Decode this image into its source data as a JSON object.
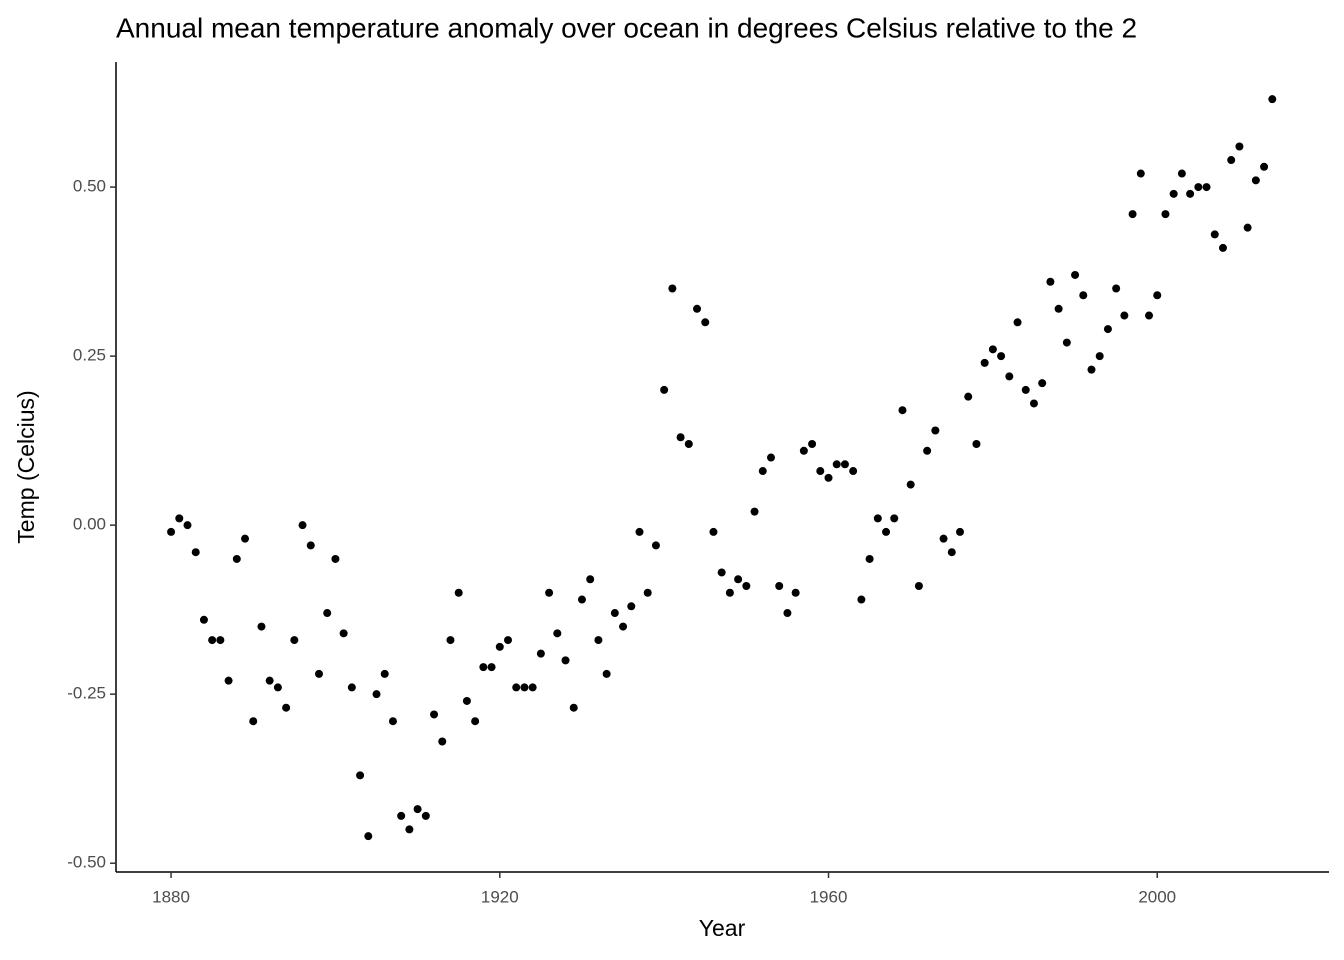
{
  "chart_data": {
    "type": "scatter",
    "title": "Annual mean temperature anomaly over ocean in degrees Celsius relative to the 2",
    "x_label": "Year",
    "y_label": "Temp (Celcius)",
    "color": "#000000",
    "x": [
      1880,
      1881,
      1882,
      1883,
      1884,
      1885,
      1886,
      1887,
      1888,
      1889,
      1890,
      1891,
      1892,
      1893,
      1894,
      1895,
      1896,
      1897,
      1898,
      1899,
      1900,
      1901,
      1902,
      1903,
      1904,
      1905,
      1906,
      1907,
      1908,
      1909,
      1910,
      1911,
      1912,
      1913,
      1914,
      1915,
      1916,
      1917,
      1918,
      1919,
      1920,
      1921,
      1922,
      1923,
      1924,
      1925,
      1926,
      1927,
      1928,
      1929,
      1930,
      1931,
      1932,
      1933,
      1934,
      1935,
      1936,
      1937,
      1938,
      1939,
      1940,
      1941,
      1942,
      1943,
      1944,
      1945,
      1946,
      1947,
      1948,
      1949,
      1950,
      1951,
      1952,
      1953,
      1954,
      1955,
      1956,
      1957,
      1958,
      1959,
      1960,
      1961,
      1962,
      1963,
      1964,
      1965,
      1966,
      1967,
      1968,
      1969,
      1970,
      1971,
      1972,
      1973,
      1974,
      1975,
      1976,
      1977,
      1978,
      1979,
      1980,
      1981,
      1982,
      1983,
      1984,
      1985,
      1986,
      1987,
      1988,
      1989,
      1990,
      1991,
      1992,
      1993,
      1994,
      1995,
      1996,
      1997,
      1998,
      1999,
      2000,
      2001,
      2002,
      2003,
      2004,
      2005,
      2006,
      2007,
      2008,
      2009,
      2010,
      2011,
      2012,
      2013,
      2014
    ],
    "values": [
      -0.01,
      0.01,
      0.0,
      -0.04,
      -0.14,
      -0.17,
      -0.17,
      -0.23,
      -0.05,
      -0.02,
      -0.29,
      -0.15,
      -0.23,
      -0.24,
      -0.27,
      -0.17,
      0.0,
      -0.03,
      -0.22,
      -0.13,
      -0.05,
      -0.16,
      -0.24,
      -0.37,
      -0.46,
      -0.25,
      -0.22,
      -0.29,
      -0.43,
      -0.45,
      -0.42,
      -0.43,
      -0.28,
      -0.32,
      -0.17,
      -0.1,
      -0.26,
      -0.29,
      -0.21,
      -0.21,
      -0.18,
      -0.17,
      -0.24,
      -0.24,
      -0.24,
      -0.19,
      -0.1,
      -0.16,
      -0.2,
      -0.27,
      -0.11,
      -0.08,
      -0.17,
      -0.22,
      -0.13,
      -0.15,
      -0.12,
      -0.01,
      -0.1,
      -0.03,
      0.2,
      0.35,
      0.13,
      0.12,
      0.32,
      0.3,
      -0.01,
      -0.07,
      -0.1,
      -0.08,
      -0.09,
      0.02,
      0.08,
      0.1,
      -0.09,
      -0.13,
      -0.1,
      0.11,
      0.12,
      0.08,
      0.07,
      0.09,
      0.09,
      0.08,
      -0.11,
      -0.05,
      0.01,
      -0.01,
      0.01,
      0.17,
      0.06,
      -0.09,
      0.11,
      0.14,
      -0.02,
      -0.04,
      -0.01,
      0.19,
      0.12,
      0.24,
      0.26,
      0.25,
      0.22,
      0.3,
      0.2,
      0.18,
      0.21,
      0.36,
      0.32,
      0.27,
      0.37,
      0.34,
      0.23,
      0.25,
      0.29,
      0.35,
      0.31,
      0.46,
      0.52,
      0.31,
      0.34,
      0.46,
      0.49,
      0.52,
      0.49,
      0.5,
      0.5,
      0.43,
      0.41,
      0.54,
      0.56,
      0.44,
      0.51,
      0.53,
      0.63
    ],
    "xlim": [
      1873.3,
      2020.9
    ],
    "ylim": [
      -0.513,
      0.685
    ],
    "xticks": [
      1880,
      1920,
      1960,
      2000
    ],
    "yticks": [
      {
        "value": -0.5,
        "label": "-0.50"
      },
      {
        "value": -0.25,
        "label": "-0.25"
      },
      {
        "value": 0,
        "label": "0.00"
      },
      {
        "value": 0.25,
        "label": "0.25"
      },
      {
        "value": 0.5,
        "label": "0.50"
      }
    ],
    "grid": false
  }
}
